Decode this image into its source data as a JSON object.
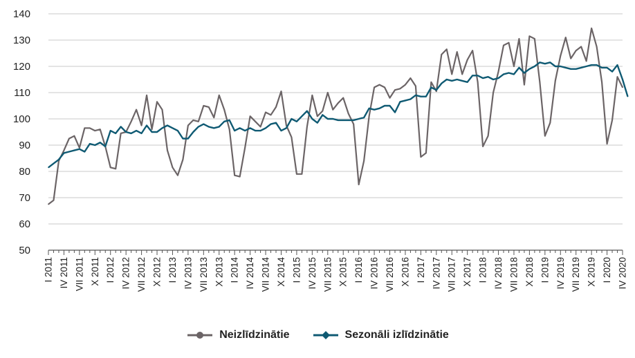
{
  "chart_data": {
    "type": "line",
    "ylim": [
      50,
      140
    ],
    "yticks": [
      50,
      60,
      70,
      80,
      90,
      100,
      110,
      120,
      130,
      140
    ],
    "x_tick_labels": [
      "I 2011",
      "IV 2011",
      "VII 2011",
      "X 2011",
      "I 2012",
      "IV 2012",
      "VII 2012",
      "X 2012",
      "I 2013",
      "IV 2013",
      "VII 2013",
      "X 2013",
      "I 2014",
      "IV 2014",
      "VII 2014",
      "X 2014",
      "I 2015",
      "IV 2015",
      "VII 2015",
      "X 2015",
      "I 2016",
      "IV 2016",
      "VII 2016",
      "X 2016",
      "I 2017",
      "IV 2017",
      "VII 2017",
      "X 2017",
      "I 2018",
      "IV 2018",
      "VII 2018",
      "X 2018",
      "I 2019",
      "IV 2019",
      "VII 2019",
      "X 2019",
      "I 2020",
      "IV 2020"
    ],
    "grid": "horizontal",
    "legend_position": "bottom",
    "series": [
      {
        "name": "Neizlīdzinātie",
        "color": "#6b6466",
        "values": [
          67.5,
          69,
          84,
          88,
          92.5,
          93.5,
          89,
          96.5,
          96.5,
          95.5,
          96,
          89.5,
          81.5,
          81,
          94.5,
          95,
          99,
          103.5,
          97.5,
          109,
          96,
          106.5,
          103.5,
          88,
          81.5,
          78.5,
          84.5,
          97.5,
          99.5,
          99,
          105,
          104.5,
          100.5,
          109,
          103.5,
          96,
          78.5,
          78,
          89,
          101,
          99,
          97,
          102.5,
          101.5,
          104.5,
          110.5,
          97.5,
          93,
          79,
          79,
          97,
          109,
          101,
          103,
          110,
          103.5,
          106,
          108,
          102,
          98,
          75,
          84,
          101,
          112,
          113,
          112,
          108,
          111,
          111.5,
          113,
          115.5,
          112.5,
          85.5,
          87,
          114,
          110.5,
          124.5,
          126.5,
          117,
          125.5,
          117,
          122.5,
          126,
          114,
          89.5,
          93.5,
          110,
          118,
          128,
          129,
          120,
          130.5,
          113,
          131.5,
          130.5,
          114,
          93.5,
          98.5,
          114.5,
          124,
          131,
          123,
          126,
          127.5,
          122,
          134.5,
          127.5,
          114,
          90.5,
          99.5,
          116,
          112
        ]
      },
      {
        "name": "Sezonāli izlīdzinātie",
        "color": "#0f5a73",
        "values": [
          81.5,
          83,
          84.5,
          87,
          87.5,
          88,
          88.5,
          87.5,
          90.5,
          90,
          91,
          89.5,
          95.5,
          94.5,
          97,
          95,
          94.5,
          95.5,
          94.5,
          97.5,
          95,
          95,
          96.5,
          97.5,
          96.5,
          95.5,
          92.5,
          92.5,
          95,
          97,
          98,
          97,
          96.5,
          97,
          99,
          99.5,
          95.5,
          96.5,
          95.5,
          96.5,
          95.5,
          95.5,
          96.5,
          98,
          98.5,
          95.5,
          96.5,
          100,
          99,
          101,
          103,
          100,
          98.5,
          101.5,
          100,
          100,
          99.5,
          99.5,
          99.5,
          99.5,
          100,
          100.5,
          104,
          103.5,
          104,
          105,
          105,
          102.5,
          106.5,
          107,
          107.5,
          109,
          108.5,
          108.5,
          112,
          111,
          113.5,
          115,
          114.5,
          115,
          114.5,
          114,
          116.5,
          116.5,
          115.5,
          116,
          115,
          115.5,
          117,
          117.5,
          117,
          119.5,
          117.5,
          119,
          120,
          121.5,
          121,
          121.5,
          120,
          120,
          119.5,
          119,
          119,
          119.5,
          120,
          120.5,
          120.5,
          119.5,
          119.5,
          118,
          120.5,
          115,
          108.5
        ]
      }
    ]
  }
}
